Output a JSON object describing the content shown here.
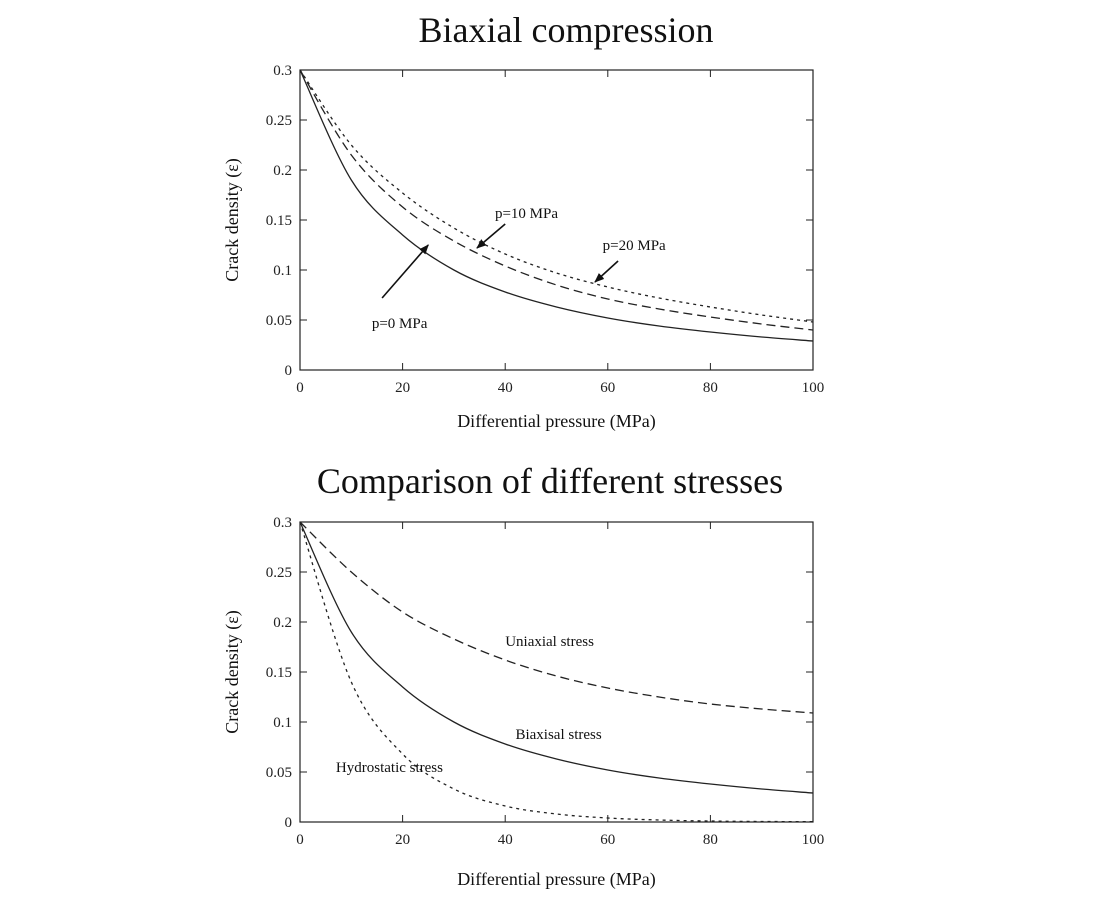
{
  "chart_data": [
    {
      "type": "line",
      "title": "Biaxial compression",
      "xlabel": "Differential pressure (MPa)",
      "ylabel": "Crack density (ε)",
      "xlim": [
        0,
        100
      ],
      "ylim": [
        0,
        0.3
      ],
      "xticks": [
        "0",
        "20",
        "40",
        "60",
        "80",
        "100"
      ],
      "yticks": [
        "0",
        "0.05",
        "0.1",
        "0.15",
        "0.2",
        "0.25",
        "0.3"
      ],
      "x": [
        0,
        10,
        20,
        30,
        40,
        50,
        60,
        70,
        80,
        90,
        100
      ],
      "series": [
        {
          "name": "p=0 MPa",
          "style": "solid",
          "values": [
            0.3,
            0.19,
            0.135,
            0.1,
            0.078,
            0.063,
            0.052,
            0.044,
            0.038,
            0.033,
            0.029
          ]
        },
        {
          "name": "p=10 MPa",
          "style": "dashed",
          "values": [
            0.3,
            0.215,
            0.163,
            0.129,
            0.104,
            0.085,
            0.071,
            0.061,
            0.053,
            0.046,
            0.04
          ]
        },
        {
          "name": "p=20 MPa",
          "style": "dotted",
          "values": [
            0.3,
            0.225,
            0.177,
            0.142,
            0.116,
            0.097,
            0.083,
            0.072,
            0.063,
            0.055,
            0.048
          ]
        }
      ],
      "annotations": [
        {
          "text": "p=0 MPa",
          "label_at": [
            14,
            0.042
          ],
          "arrow_from": [
            16,
            0.072
          ],
          "arrow_to": [
            25,
            0.125
          ]
        },
        {
          "text": "p=10 MPa",
          "label_at": [
            38,
            0.152
          ],
          "arrow_from": [
            40,
            0.146
          ],
          "arrow_to": [
            34.5,
            0.122
          ]
        },
        {
          "text": "p=20 MPa",
          "label_at": [
            59,
            0.12
          ],
          "arrow_from": [
            62,
            0.109
          ],
          "arrow_to": [
            57.5,
            0.088
          ]
        }
      ]
    },
    {
      "type": "line",
      "title": "Comparison of different stresses",
      "xlabel": "Differential pressure (MPa)",
      "ylabel": "Crack density (ε)",
      "xlim": [
        0,
        100
      ],
      "ylim": [
        0,
        0.3
      ],
      "xticks": [
        "0",
        "20",
        "40",
        "60",
        "80",
        "100"
      ],
      "yticks": [
        "0",
        "0.05",
        "0.1",
        "0.15",
        "0.2",
        "0.25",
        "0.3"
      ],
      "x": [
        0,
        10,
        20,
        30,
        40,
        50,
        60,
        70,
        80,
        90,
        100
      ],
      "series": [
        {
          "name": "Uniaxial stress",
          "style": "dashed",
          "values": [
            0.3,
            0.25,
            0.21,
            0.183,
            0.162,
            0.146,
            0.134,
            0.125,
            0.118,
            0.113,
            0.109
          ]
        },
        {
          "name": "Biaxisal stress",
          "style": "solid",
          "values": [
            0.3,
            0.19,
            0.135,
            0.1,
            0.078,
            0.063,
            0.052,
            0.044,
            0.038,
            0.033,
            0.029
          ]
        },
        {
          "name": "Hydrostatic stress",
          "style": "dotted",
          "values": [
            0.3,
            0.14,
            0.068,
            0.033,
            0.016,
            0.008,
            0.004,
            0.002,
            0.001,
            0.0005,
            0.0003
          ]
        }
      ],
      "annotations": [
        {
          "text": "Uniaxial stress",
          "label_at": [
            40,
            0.176
          ]
        },
        {
          "text": "Biaxisal stress",
          "label_at": [
            42,
            0.083
          ]
        },
        {
          "text": "Hydrostatic stress",
          "label_at": [
            7,
            0.05
          ]
        }
      ]
    }
  ]
}
